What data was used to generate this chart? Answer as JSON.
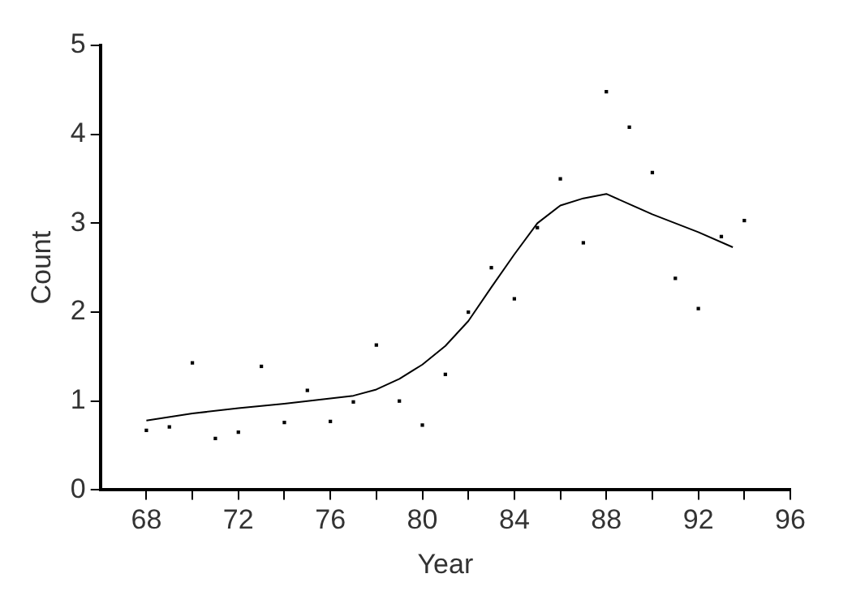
{
  "chart_data": {
    "type": "scatter",
    "xlabel": "Year",
    "ylabel": "Count",
    "xlim": [
      66,
      96
    ],
    "ylim": [
      0,
      5
    ],
    "xticks": [
      68,
      {
        "value": 70,
        "label": null
      },
      72,
      {
        "value": 74,
        "label": null
      },
      76,
      {
        "value": 78,
        "label": null
      },
      80,
      {
        "value": 82,
        "label": null
      },
      84,
      {
        "value": 86,
        "label": null
      },
      88,
      {
        "value": 90,
        "label": null
      },
      92,
      {
        "value": 94,
        "label": null
      },
      96
    ],
    "yticks": [
      0,
      1,
      2,
      3,
      4,
      5
    ],
    "grid": false,
    "legend": false,
    "marker": "square",
    "series": [
      {
        "type": "scatter",
        "color": "#000000",
        "x": [
          68,
          69,
          70,
          71,
          72,
          73,
          74,
          75,
          76,
          77,
          78,
          79,
          80,
          81,
          82,
          83,
          84,
          85,
          86,
          87,
          88,
          89,
          90,
          91,
          92,
          93,
          94
        ],
        "values": [
          0.67,
          0.71,
          1.43,
          0.58,
          0.65,
          1.39,
          0.76,
          1.12,
          0.77,
          0.99,
          1.63,
          1.0,
          0.73,
          1.3,
          2.0,
          2.5,
          2.15,
          2.95,
          3.5,
          2.78,
          4.48,
          4.08,
          3.57,
          2.38,
          2.04,
          2.85,
          3.03
        ]
      },
      {
        "type": "line",
        "color": "#000000",
        "marker": "none",
        "x": [
          68,
          70,
          72,
          74,
          76,
          77,
          78,
          79,
          80,
          81,
          82,
          83,
          84,
          85,
          86,
          87,
          88,
          90,
          92,
          93.5
        ],
        "values": [
          0.78,
          0.86,
          0.92,
          0.97,
          1.03,
          1.06,
          1.13,
          1.25,
          1.41,
          1.62,
          1.9,
          2.28,
          2.65,
          3.0,
          3.2,
          3.28,
          3.33,
          3.1,
          2.9,
          2.73
        ]
      }
    ]
  }
}
